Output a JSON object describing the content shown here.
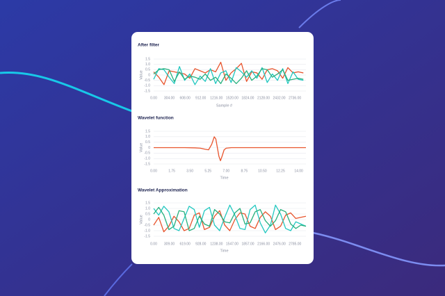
{
  "chart_data": [
    {
      "type": "line",
      "title": "After filter",
      "x_label": "Sample #",
      "y_label": "Value",
      "x": [
        0,
        100,
        200,
        300,
        400,
        500,
        600,
        700,
        800,
        900,
        1000,
        1100,
        1200,
        1300,
        1400,
        1500,
        1600,
        1700,
        1800,
        1900,
        2000,
        2100,
        2200,
        2300,
        2400,
        2500,
        2600,
        2700,
        2800,
        2900
      ],
      "series": [
        {
          "color": "#e8542c",
          "values": [
            0.3,
            -0.2,
            -0.9,
            0.4,
            0.3,
            0.2,
            0.1,
            -0.3,
            0.6,
            0.4,
            0.2,
            0.5,
            0.3,
            1.2,
            -0.5,
            0.2,
            0.6,
            1.1,
            -0.6,
            0.3,
            0.2,
            -0.4,
            0.5,
            0.6,
            0.4,
            -0.3,
            0.7,
            0.2,
            0.3,
            0.2
          ]
        },
        {
          "color": "#22c8c0",
          "values": [
            -0.4,
            0.6,
            0.5,
            -0.2,
            -0.8,
            0.8,
            -0.5,
            0.1,
            -0.9,
            -0.1,
            -0.6,
            0.6,
            -0.8,
            0.2,
            0.4,
            -0.7,
            0.7,
            0.3,
            -0.2,
            0.4,
            -0.3,
            0.7,
            -0.7,
            0.1,
            -0.5,
            0.6,
            -0.8,
            0.3,
            -0.4,
            -0.5
          ]
        },
        {
          "color": "#27b07d",
          "values": [
            0.1,
            0.5,
            0.6,
            0.5,
            -0.6,
            0.3,
            -0.4,
            -0.1,
            -0.2,
            -0.4,
            0.1,
            -0.5,
            -0.2,
            -0.8,
            0.1,
            -0.3,
            -0.8,
            -0.3,
            0.4,
            -0.5,
            -0.1,
            0.6,
            0.5,
            -0.2,
            0.1,
            0.5,
            -0.5,
            -0.4,
            -0.3,
            -0.4
          ]
        }
      ],
      "xlim": [
        0,
        2950
      ],
      "xticks": [
        {
          "value": 0,
          "label": "0.00"
        },
        {
          "value": 304,
          "label": "304.00"
        },
        {
          "value": 608,
          "label": "608.00"
        },
        {
          "value": 912,
          "label": "912.00"
        },
        {
          "value": 1216,
          "label": "1216.00"
        },
        {
          "value": 1520,
          "label": "1520.00"
        },
        {
          "value": 1824,
          "label": "1824.00"
        },
        {
          "value": 2128,
          "label": "2128.00"
        },
        {
          "value": 2432,
          "label": "2432.00"
        },
        {
          "value": 2736,
          "label": "2736.00"
        }
      ],
      "ylim": [
        -1.5,
        1.5
      ],
      "yticks": [
        1.5,
        {
          "value": 1,
          "label": "1.0"
        },
        0.5,
        0,
        -0.5,
        {
          "value": -1,
          "label": "-1.0"
        },
        -1.5
      ],
      "grid": true
    },
    {
      "type": "line",
      "title": "Wavelet function",
      "x_label": "Time",
      "y_label": "Value",
      "x": [
        0,
        1,
        2,
        3,
        4,
        4.5,
        5,
        5.3,
        5.6,
        5.85,
        6.0,
        6.15,
        6.3,
        6.45,
        6.6,
        6.8,
        7.0,
        7.5,
        8,
        9,
        10,
        11,
        12,
        13,
        14,
        14.7
      ],
      "series": [
        {
          "color": "#e8542c",
          "values": [
            0,
            0,
            0,
            0,
            -0.02,
            -0.05,
            -0.15,
            -0.2,
            0.3,
            1.0,
            0.8,
            0,
            -0.8,
            -1.2,
            -0.8,
            -0.2,
            -0.05,
            0,
            0,
            0,
            0,
            0,
            0,
            0,
            0,
            0
          ]
        }
      ],
      "xlim": [
        0,
        14.7
      ],
      "xticks": [
        {
          "value": 0,
          "label": "0.00"
        },
        {
          "value": 1.75,
          "label": "1.75"
        },
        {
          "value": 3.5,
          "label": "3.50"
        },
        {
          "value": 5.25,
          "label": "5.25"
        },
        {
          "value": 7,
          "label": "7.00"
        },
        {
          "value": 8.75,
          "label": "8.75"
        },
        {
          "value": 10.5,
          "label": "10.50"
        },
        {
          "value": 12.25,
          "label": "12.25"
        },
        {
          "value": 14,
          "label": "14.00"
        }
      ],
      "ylim": [
        -1.5,
        1.5
      ],
      "yticks": [
        1.5,
        {
          "value": 1,
          "label": "1.0"
        },
        0.5,
        0,
        -0.5,
        {
          "value": -1,
          "label": "-1.0"
        },
        -1.5
      ],
      "grid": true
    },
    {
      "type": "line",
      "title": "Wavelet Approximation",
      "x_label": "Time",
      "y_label": "Value",
      "x": [
        0,
        100,
        200,
        300,
        400,
        500,
        600,
        700,
        800,
        900,
        1000,
        1100,
        1200,
        1300,
        1400,
        1500,
        1600,
        1700,
        1800,
        1900,
        2000,
        2100,
        2200,
        2300,
        2400,
        2500,
        2600,
        2700,
        2800,
        2900,
        3000
      ],
      "series": [
        {
          "color": "#e8542c",
          "values": [
            -0.5,
            0.2,
            -1.1,
            -0.6,
            0.3,
            -0.2,
            -1.0,
            -0.8,
            0.4,
            0.6,
            -0.9,
            -0.7,
            0.3,
            0.8,
            -0.5,
            -1.0,
            0.0,
            0.6,
            0.5,
            -0.6,
            -0.8,
            0.2,
            0.7,
            0.3,
            -0.9,
            -0.6,
            0.4,
            0.6,
            0.1,
            0.2,
            0.3
          ]
        },
        {
          "color": "#22c8c0",
          "values": [
            1.0,
            0.4,
            1.2,
            0.7,
            -0.8,
            -1.0,
            0.1,
            1.2,
            0.9,
            -0.7,
            0.8,
            1.1,
            -0.5,
            -1.0,
            0.2,
            1.3,
            0.4,
            -0.8,
            -0.9,
            0.9,
            1.3,
            -0.3,
            -1.2,
            -0.5,
            1.3,
            0.5,
            -0.8,
            -1.0,
            -0.2,
            -0.4,
            -0.6
          ]
        },
        {
          "color": "#27b07d",
          "values": [
            0.5,
            1.1,
            0.4,
            -0.9,
            -0.6,
            0.8,
            0.7,
            -1.0,
            -0.8,
            0.3,
            -0.4,
            -0.6,
            0.9,
            0.5,
            -0.2,
            -0.3,
            0.6,
            1.0,
            -0.4,
            -0.3,
            0.7,
            0.9,
            -0.1,
            -0.6,
            -0.1,
            0.9,
            0.7,
            -0.4,
            -0.8,
            -0.5,
            -0.6
          ]
        }
      ],
      "xlim": [
        0,
        3000
      ],
      "xticks": [
        {
          "value": 0,
          "label": "0.00"
        },
        {
          "value": 309,
          "label": "309.00"
        },
        {
          "value": 619,
          "label": "619.00"
        },
        {
          "value": 928,
          "label": "928.00"
        },
        {
          "value": 1238,
          "label": "1238.00"
        },
        {
          "value": 1547,
          "label": "1547.00"
        },
        {
          "value": 1857,
          "label": "1857.00"
        },
        {
          "value": 2166,
          "label": "2166.00"
        },
        {
          "value": 2476,
          "label": "2476.00"
        },
        {
          "value": 2785,
          "label": "2785.00"
        }
      ],
      "ylim": [
        -1.5,
        1.5
      ],
      "yticks": [
        1.5,
        {
          "value": 1,
          "label": "1.0"
        },
        0.5,
        0,
        -0.5,
        {
          "value": -1,
          "label": "-1.0"
        },
        -1.5
      ],
      "grid": true
    }
  ]
}
